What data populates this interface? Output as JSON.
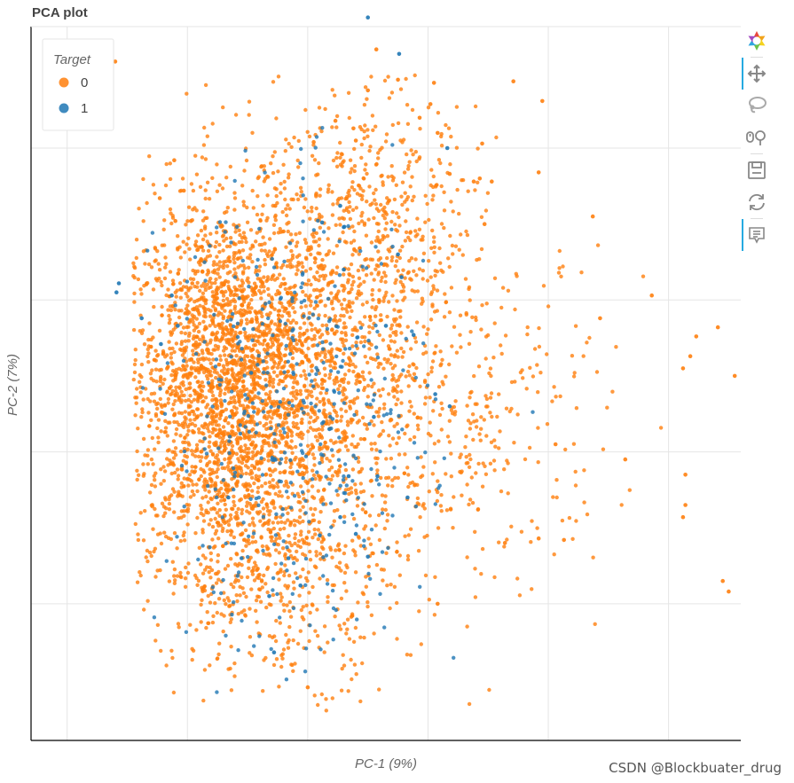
{
  "plot": {
    "title": "PCA plot"
  },
  "chart_data": {
    "type": "scatter",
    "title": "PCA plot",
    "xlabel": "PC-1 (9%)",
    "ylabel": "PC-2 (7%)",
    "xlim": [
      -0.8,
      5.1
    ],
    "ylim": [
      -2.4,
      2.3
    ],
    "x_gridlines": [
      -0.5,
      0.5,
      1.5,
      2.5,
      3.5,
      4.5
    ],
    "y_gridlines": [
      -1.5,
      -0.5,
      0.5,
      1.5
    ],
    "tick_labels_visible": false,
    "grid": true,
    "legend": {
      "title": "Target",
      "placement": "top-left",
      "entries": [
        "0",
        "1"
      ]
    },
    "series": [
      {
        "name": "0",
        "color": "#ff7f0e",
        "points": [
          [
            -0.33,
            2.01
          ],
          [
            -0.1,
            2.07
          ],
          [
            0.4,
            1.02
          ],
          [
            0.47,
            1.22
          ],
          [
            0.39,
            1.42
          ],
          [
            0.27,
            1.17
          ],
          [
            0.53,
            1.02
          ],
          [
            0.62,
            0.85
          ],
          [
            0.54,
            0.61
          ],
          [
            0.3,
            0.15
          ],
          [
            0.52,
            -0.05
          ],
          [
            0.8,
            0.6
          ],
          [
            1.23,
            1.12
          ],
          [
            1.55,
            1.54
          ],
          [
            1.73,
            1.68
          ],
          [
            1.88,
            1.63
          ],
          [
            1.9,
            1.55
          ],
          [
            2.0,
            1.88
          ],
          [
            2.07,
            2.15
          ],
          [
            2.25,
            1.95
          ],
          [
            2.43,
            1.7
          ],
          [
            2.55,
            1.93
          ],
          [
            2.52,
            1.79
          ],
          [
            2.58,
            1.6
          ],
          [
            2.88,
            1.28
          ],
          [
            3.21,
            1.94
          ],
          [
            3.45,
            1.81
          ],
          [
            2.68,
            1.33
          ],
          [
            2.97,
            1.0
          ],
          [
            2.93,
            1.3
          ],
          [
            3.03,
            1.28
          ],
          [
            3.42,
            1.34
          ],
          [
            2.95,
            1.53
          ],
          [
            3.87,
            1.05
          ],
          [
            3.93,
            0.38
          ],
          [
            4.36,
            0.53
          ],
          [
            4.62,
            0.05
          ],
          [
            4.91,
            0.32
          ],
          [
            4.73,
            0.26
          ],
          [
            4.68,
            0.13
          ],
          [
            5.05,
            0.0
          ],
          [
            4.64,
            -0.85
          ],
          [
            4.62,
            -0.93
          ],
          [
            4.95,
            -1.35
          ],
          [
            5.0,
            -1.42
          ],
          [
            3.56,
            -0.45
          ],
          [
            4.14,
            -0.55
          ],
          [
            4.64,
            -0.65
          ],
          [
            3.14,
            -1.1
          ],
          [
            3.42,
            -1.07
          ],
          [
            3.63,
            -1.08
          ],
          [
            1.5,
            -2.05
          ],
          [
            2.58,
            -1.5
          ]
        ]
      },
      {
        "name": "1",
        "color": "#1f77b4",
        "points": [
          [
            2.0,
            2.36
          ],
          [
            2.26,
            2.12
          ],
          [
            2.66,
            1.5
          ],
          [
            1.62,
            1.01
          ],
          [
            1.77,
            1.12
          ],
          [
            1.8,
            0.98
          ],
          [
            2.25,
            0.8
          ],
          [
            2.28,
            0.65
          ],
          [
            2.15,
            0.33
          ],
          [
            0.28,
            0.21
          ],
          [
            0.12,
            0.38
          ],
          [
            -0.07,
            0.61
          ],
          [
            -0.09,
            0.55
          ],
          [
            0.42,
            0.33
          ],
          [
            0.37,
            0.53
          ],
          [
            1.8,
            0.7
          ],
          [
            2.38,
            0.27
          ],
          [
            2.56,
            -0.12
          ],
          [
            2.05,
            -0.27
          ],
          [
            2.08,
            -0.66
          ],
          [
            1.9,
            -1.04
          ],
          [
            2.0,
            -1.19
          ],
          [
            1.22,
            -1.82
          ],
          [
            1.44,
            -1.38
          ],
          [
            2.33,
            -0.8
          ],
          [
            1.77,
            -0.93
          ],
          [
            1.68,
            -0.35
          ],
          [
            1.03,
            0.02
          ],
          [
            0.84,
            -0.8
          ],
          [
            0.95,
            -1.2
          ],
          [
            1.18,
            -1.45
          ],
          [
            1.34,
            -1.2
          ],
          [
            1.6,
            -1.05
          ],
          [
            1.84,
            -0.66
          ],
          [
            2.68,
            -0.2
          ]
        ]
      }
    ]
  },
  "toolbar": {
    "tools": [
      {
        "name": "bokeh-logo-icon",
        "active": false
      },
      {
        "name": "pan-tool-icon",
        "active": true
      },
      {
        "name": "lasso-select-icon",
        "active": false
      },
      {
        "name": "wheel-zoom-icon",
        "active": false
      },
      {
        "name": "save-icon",
        "active": false
      },
      {
        "name": "reset-icon",
        "active": false
      },
      {
        "name": "hover-tool-icon",
        "active": true
      }
    ]
  },
  "watermark": "CSDN @Blockbuater_drug"
}
